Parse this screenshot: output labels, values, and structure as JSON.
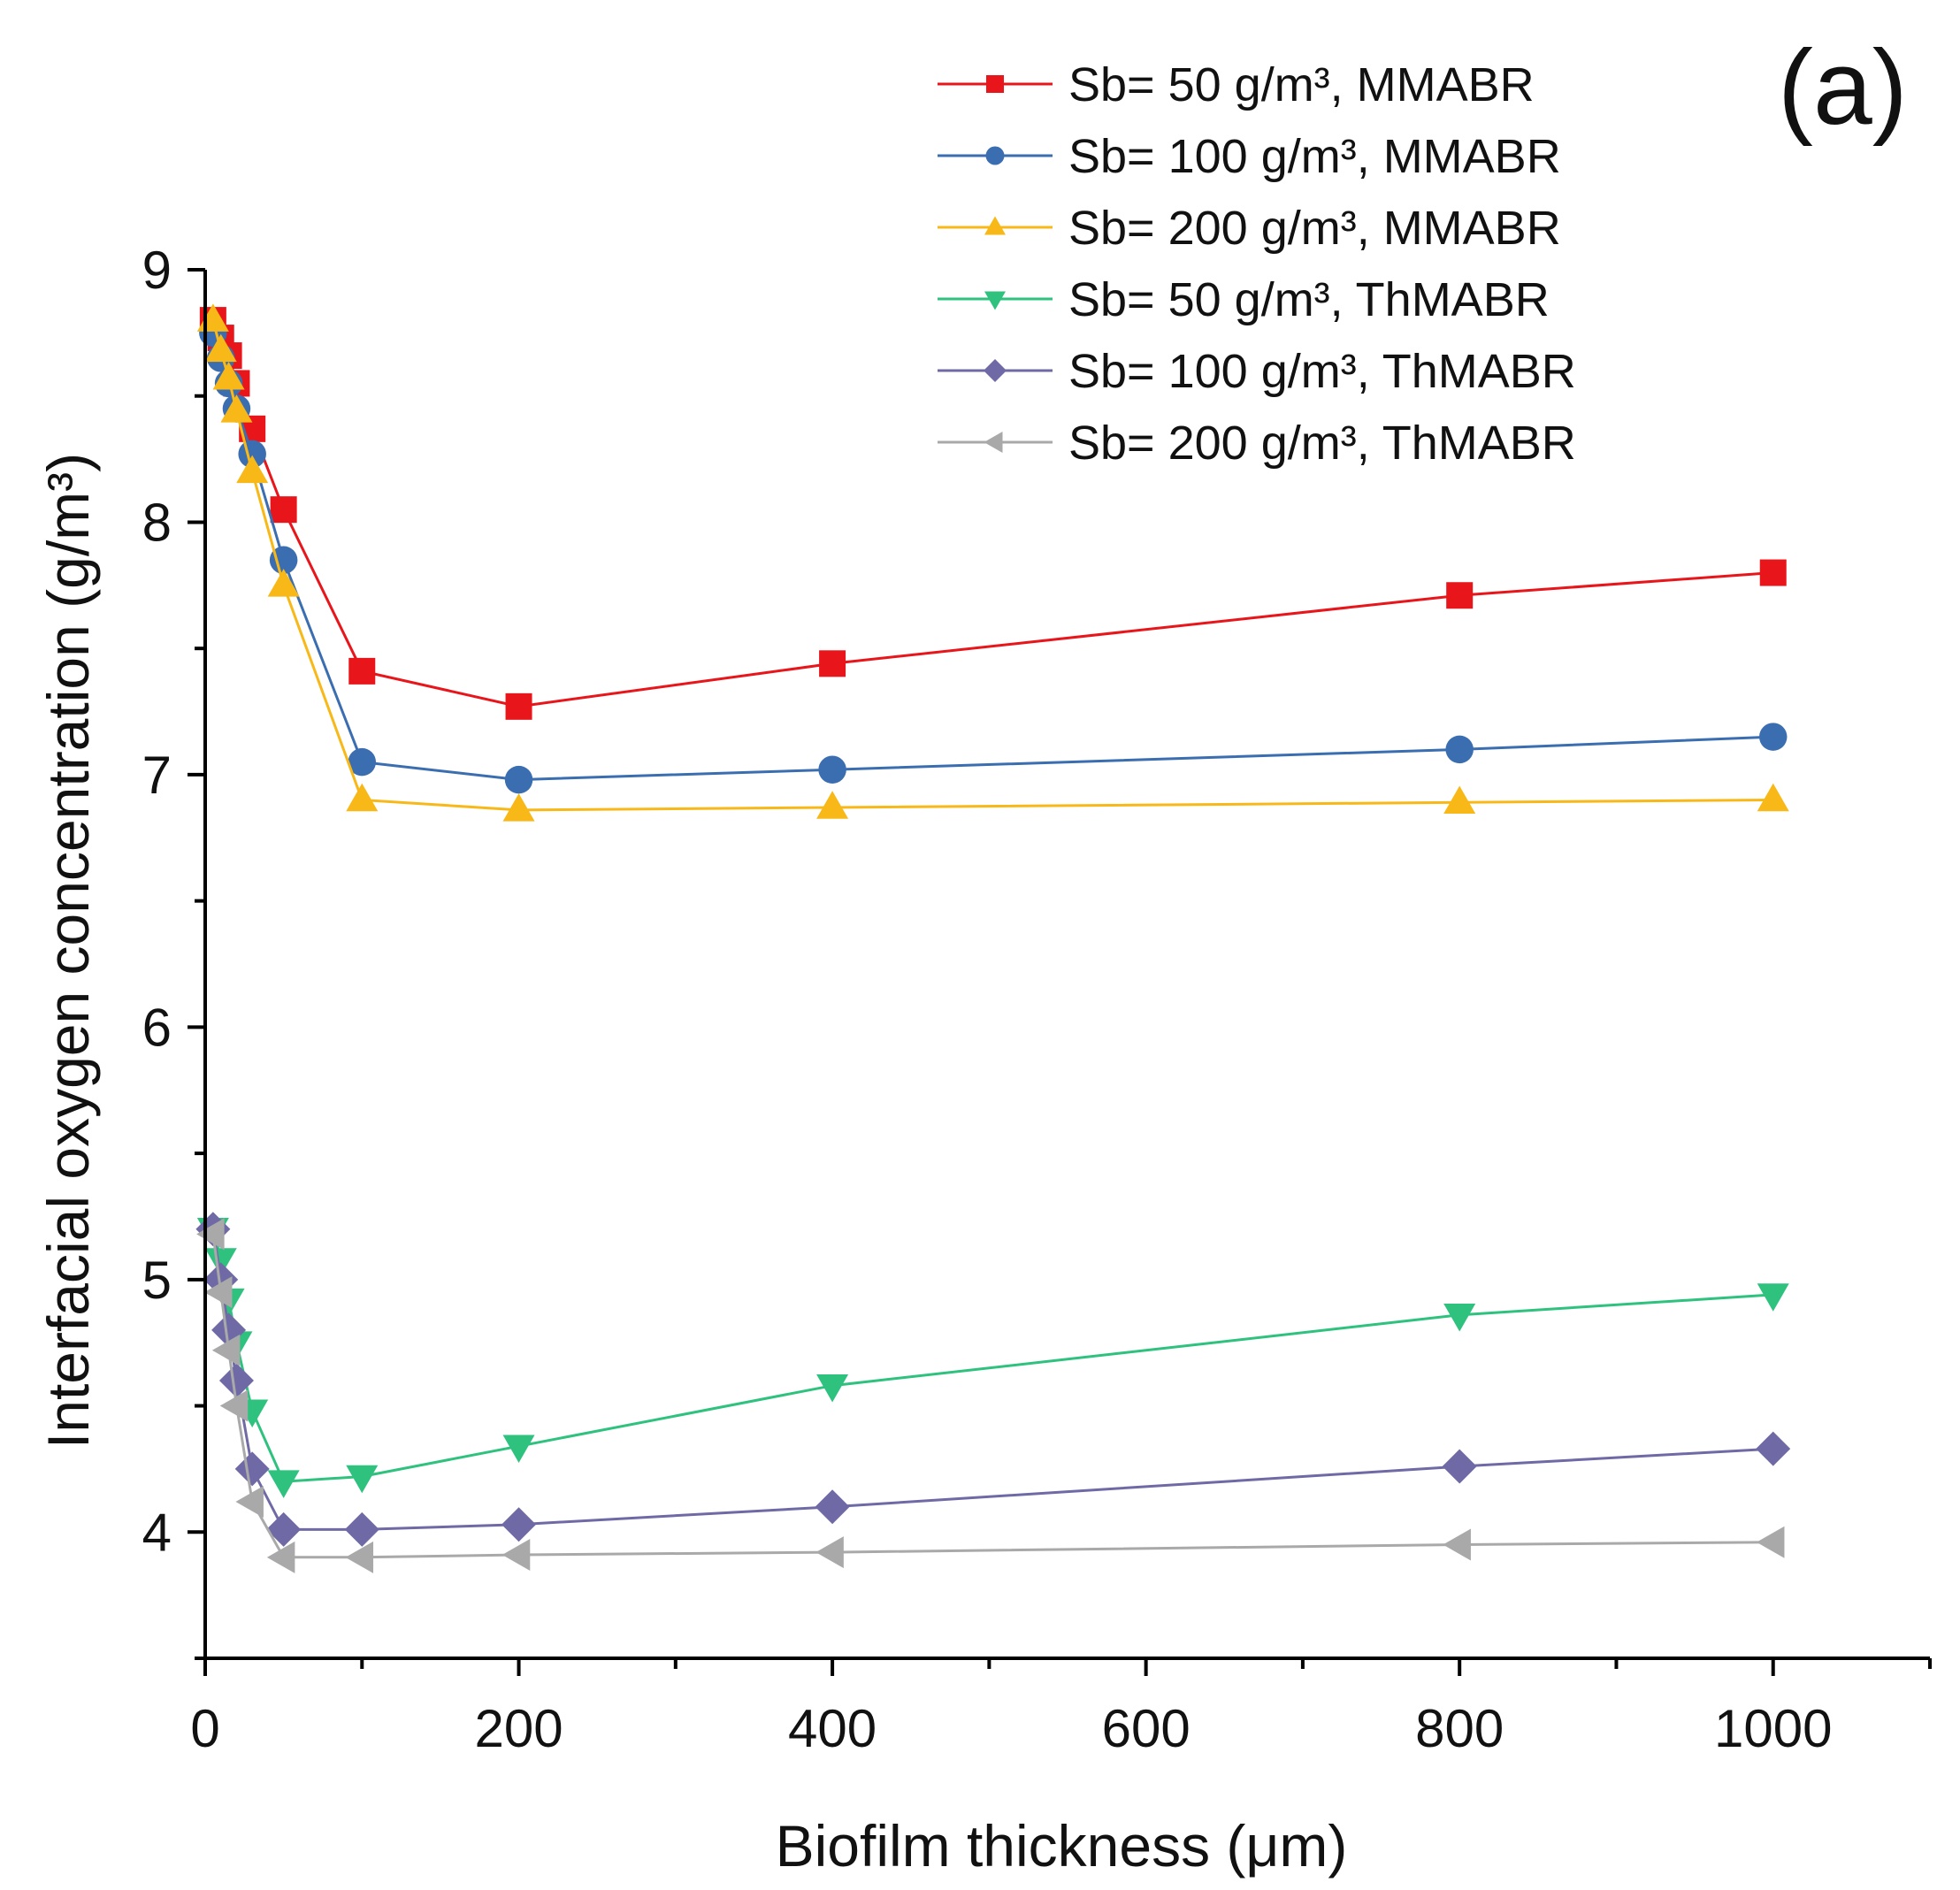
{
  "chart_data": {
    "type": "line",
    "title": "",
    "panel_label": "(a)",
    "xlabel": "Biofilm thickness (μm)",
    "ylabel": "Interfacial oxygen concentration (g/m³)",
    "xlim": [
      0,
      1100
    ],
    "ylim": [
      3.5,
      9
    ],
    "xticks": [
      0,
      200,
      400,
      600,
      800,
      1000
    ],
    "yticks": [
      4,
      5,
      6,
      7,
      8,
      9
    ],
    "grid": false,
    "legend_position": "top-right",
    "x": [
      5,
      10,
      15,
      20,
      30,
      50,
      100,
      200,
      400,
      800,
      1000
    ],
    "series": [
      {
        "name": "Sb= 50 g/m³, MMABR",
        "color": "#e8151b",
        "marker": "square",
        "values": [
          8.8,
          8.73,
          8.66,
          8.55,
          8.37,
          8.05,
          7.41,
          7.27,
          7.44,
          7.71,
          7.8
        ]
      },
      {
        "name": "Sb= 100 g/m³, MMABR",
        "color": "#3b6eb0",
        "marker": "circle",
        "values": [
          8.75,
          8.65,
          8.55,
          8.45,
          8.27,
          7.85,
          7.05,
          6.98,
          7.02,
          7.1,
          7.15
        ]
      },
      {
        "name": "Sb= 200 g/m³, MMABR",
        "color": "#f7b818",
        "marker": "triangle-up",
        "values": [
          8.8,
          8.68,
          8.57,
          8.44,
          8.2,
          7.75,
          6.9,
          6.86,
          6.87,
          6.89,
          6.9
        ]
      },
      {
        "name": "Sb= 50 g/m³, ThMABR",
        "color": "#2ec27e",
        "marker": "triangle-down",
        "values": [
          5.2,
          5.08,
          4.92,
          4.75,
          4.48,
          4.2,
          4.22,
          4.34,
          4.58,
          4.86,
          4.94
        ]
      },
      {
        "name": "Sb= 100 g/m³, ThMABR",
        "color": "#6f6aa5",
        "marker": "diamond",
        "values": [
          5.2,
          5.0,
          4.8,
          4.6,
          4.25,
          4.01,
          4.01,
          4.03,
          4.1,
          4.26,
          4.33
        ]
      },
      {
        "name": "Sb= 200 g/m³, ThMABR",
        "color": "#a9a9a9",
        "marker": "triangle-left",
        "values": [
          5.18,
          4.95,
          4.72,
          4.5,
          4.12,
          3.9,
          3.9,
          3.91,
          3.92,
          3.95,
          3.96
        ]
      }
    ]
  }
}
